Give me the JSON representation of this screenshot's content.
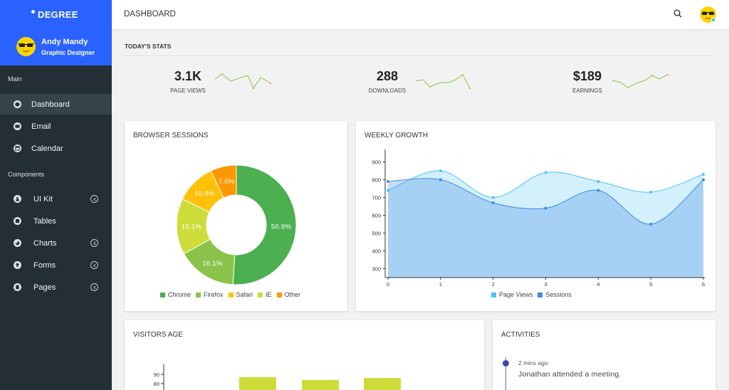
{
  "sidebar": {
    "brand": "DEGREE",
    "user": {
      "name": "Andy Mandy",
      "role": "Graphic Designer"
    },
    "sections": [
      {
        "label": "Main"
      },
      {
        "label": "Components"
      }
    ],
    "items": [
      {
        "label": "Dashboard",
        "icon": "dashboard-icon",
        "active": true
      },
      {
        "label": "Email",
        "icon": "email-icon"
      },
      {
        "label": "Calendar",
        "icon": "calendar-icon"
      },
      {
        "label": "UI Kit",
        "icon": "ui-kit-icon",
        "has_submenu": true
      },
      {
        "label": "Tables",
        "icon": "tables-icon"
      },
      {
        "label": "Charts",
        "icon": "charts-icon",
        "has_submenu": true
      },
      {
        "label": "Forms",
        "icon": "forms-icon",
        "has_submenu": true
      },
      {
        "label": "Pages",
        "icon": "pages-icon",
        "has_submenu": true
      }
    ]
  },
  "header": {
    "title": "DASHBOARD"
  },
  "stats": {
    "title": "TODAY'S STATS",
    "items": [
      {
        "value": "3.1K",
        "label": "PAGE VIEWS"
      },
      {
        "value": "288",
        "label": "DOWNLOADS"
      },
      {
        "value": "$189",
        "label": "EARNINGS"
      }
    ]
  },
  "browser_sessions": {
    "title": "BROWSER SESSIONS",
    "chart_data": {
      "type": "pie",
      "labels": [
        "Chrome",
        "Firefox",
        "Safari",
        "IE",
        "Other"
      ],
      "values": [
        50.9,
        16.1,
        10.9,
        15.1,
        7.0
      ],
      "value_labels": [
        "50.9%",
        "16.1%",
        "10.9%",
        "15.1%",
        "7.0%"
      ],
      "slice_order": [
        "Chrome",
        "Firefox",
        "IE",
        "Safari",
        "Other"
      ],
      "colors": {
        "Chrome": "#4caf50",
        "Firefox": "#8bc34a",
        "Safari": "#ffc107",
        "IE": "#cddc39",
        "Other": "#ff9800"
      },
      "legend": "bottom"
    }
  },
  "weekly_growth": {
    "title": "WEEKLY GROWTH",
    "chart_data": {
      "type": "area",
      "x": [
        0,
        1,
        2,
        3,
        4,
        5,
        6
      ],
      "series": [
        {
          "name": "Page Views",
          "values": [
            740,
            850,
            700,
            840,
            790,
            730,
            830
          ],
          "color": "#4fc3f7"
        },
        {
          "name": "Sessions",
          "values": [
            790,
            800,
            670,
            640,
            740,
            550,
            800
          ],
          "color": "#3f8ae0"
        }
      ],
      "ylim": [
        250,
        950
      ],
      "yticks": [
        300,
        400,
        500,
        600,
        700,
        800,
        900
      ],
      "xticks": [
        0,
        1,
        2,
        3,
        4,
        5,
        6
      ],
      "legend": "bottom"
    }
  },
  "visitors_age": {
    "title": "VISITORS AGE",
    "chart_data": {
      "type": "bar",
      "yticks": [
        80,
        90
      ],
      "values": [
        87,
        84,
        86
      ],
      "color": "#cddc39"
    }
  },
  "activities": {
    "title": "ACTIVITIES",
    "items": [
      {
        "time": "2 mins ago",
        "text": "Jonathan attended a meeting."
      }
    ]
  }
}
